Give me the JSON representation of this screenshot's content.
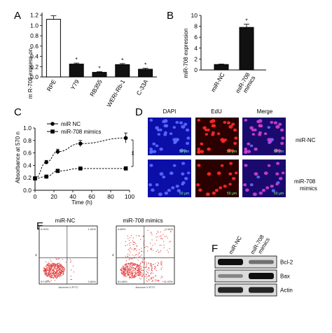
{
  "panels": {
    "A": {
      "label": "A",
      "chart_data": {
        "type": "bar",
        "categories": [
          "RPE",
          "Y79",
          "RB355",
          "WERI-Rb-1",
          "C-33A"
        ],
        "values": [
          1.12,
          0.25,
          0.09,
          0.24,
          0.15
        ],
        "errors": [
          0.07,
          0.02,
          0.015,
          0.02,
          0.02
        ],
        "significance": [
          "",
          "*",
          "*",
          "*",
          "*"
        ],
        "colors": [
          "#ffffff",
          "#111111",
          "#111111",
          "#111111",
          "#111111"
        ],
        "ylabel": "m R-708 express on",
        "yticks": [
          "0.0",
          "0.2",
          "0.4",
          "0.6",
          "0.8",
          "1.0",
          "1.2"
        ],
        "ylim": [
          0,
          1.25
        ]
      }
    },
    "B": {
      "label": "B",
      "chart_data": {
        "type": "bar",
        "categories": [
          "miR-NC",
          "miR-708 mimics"
        ],
        "values": [
          1.0,
          7.8
        ],
        "errors": [
          0.08,
          0.6
        ],
        "significance": [
          "",
          "*"
        ],
        "ylabel": "miR-708 expression",
        "yticks": [
          "0",
          "2",
          "4",
          "6",
          "8",
          "10"
        ],
        "ylim": [
          0,
          10
        ]
      }
    },
    "C": {
      "label": "C",
      "chart_data": {
        "type": "line",
        "ylabel": "Absorbance at 570 n",
        "xlabel": "Time (h)",
        "xticks": [
          "0",
          "20",
          "40",
          "60",
          "80",
          "100"
        ],
        "yticks": [
          "0.0",
          "0.2",
          "0.4",
          "0.6",
          "0.8",
          "1.0"
        ],
        "xlim": [
          0,
          100
        ],
        "ylim": [
          0,
          1.0
        ],
        "significance": "**",
        "series": [
          {
            "name": "miR NC",
            "marker": "circle",
            "x": [
              0,
              12,
              24,
              48,
              96
            ],
            "y": [
              0.19,
              0.45,
              0.62,
              0.75,
              0.84
            ],
            "errors": [
              0.03,
              0.03,
              0.04,
              0.05,
              0.08
            ]
          },
          {
            "name": "miR-708 mimics",
            "marker": "square",
            "x": [
              0,
              12,
              24,
              48,
              96
            ],
            "y": [
              0.19,
              0.22,
              0.31,
              0.35,
              0.35
            ],
            "errors": [
              0.02,
              0.02,
              0.03,
              0.02,
              0.03
            ]
          }
        ]
      }
    },
    "D": {
      "label": "D",
      "columns": [
        "DAPI",
        "EdU",
        "Merge"
      ],
      "rows": [
        "miR-NC",
        "miR-708 mimics"
      ],
      "scale_bar": "50 μm",
      "colors": {
        "dapi_bg": "#0c0ea8",
        "edu_bg": "#2a0000",
        "merge_bg": "#1a0a6e",
        "nucleus_blue": "#5b6cff",
        "nucleus_red": "#ff2a2a",
        "nucleus_pink": "#d040d0"
      }
    },
    "E": {
      "label": "E",
      "plots": [
        "miR-NC",
        "miR-708 mimics"
      ],
      "quadrant_labels_nc": {
        "ul": "0.00%",
        "ur": "1.64%",
        "ll": "97.50%",
        "lr": "0.86%"
      },
      "quadrant_labels_mimics": {
        "ul": "4.85%",
        "ur": "2.44%",
        "ll": "81.68%",
        "lr": "11.03%"
      },
      "axis_x": "Annexin V-FITC",
      "axis_y": "PI",
      "dot_color": "#e04040"
    },
    "F": {
      "label": "F",
      "columns": [
        "miR-NC",
        "miR-708 mimics"
      ],
      "bands": [
        "Bcl-2",
        "Bax",
        "Actin"
      ]
    }
  }
}
